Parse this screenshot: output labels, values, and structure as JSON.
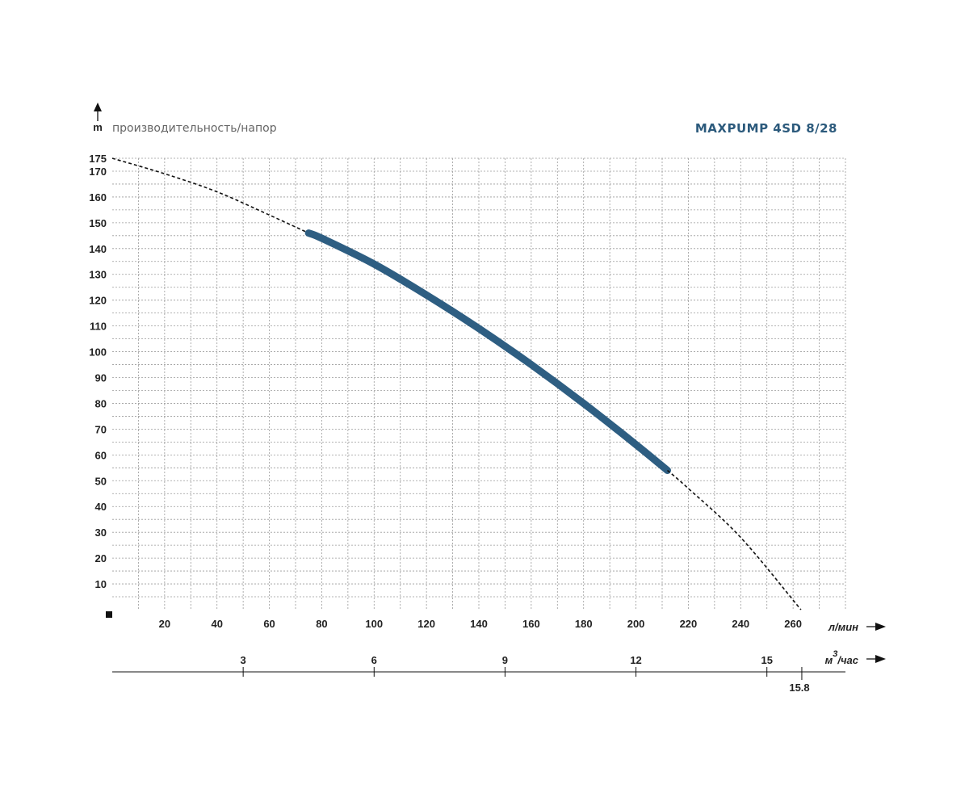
{
  "chart_data": {
    "type": "line",
    "title": "MAXPUMP 4SD 8/28",
    "subtitle": "производительность/напор",
    "ylabel": "m",
    "xlabel": "л/мин",
    "x2label_base": "м",
    "x2label_sup": "3",
    "x2label_rest": "/час",
    "ylim": [
      0,
      175
    ],
    "xlim": [
      0,
      280
    ],
    "y_ticks": [
      10,
      20,
      30,
      40,
      50,
      60,
      70,
      80,
      90,
      100,
      110,
      120,
      130,
      140,
      150,
      160,
      170,
      175
    ],
    "x_ticks": [
      20,
      40,
      60,
      80,
      100,
      120,
      140,
      160,
      180,
      200,
      220,
      240,
      260
    ],
    "x2_ticks": [
      {
        "value": 3,
        "label": "3"
      },
      {
        "value": 6,
        "label": "6"
      },
      {
        "value": 9,
        "label": "9"
      },
      {
        "value": 12,
        "label": "12"
      },
      {
        "value": 15,
        "label": "15"
      }
    ],
    "x2_max_label": "15.8",
    "x2_max_value": 15.8,
    "grid": true,
    "series": [
      {
        "style": "dashed",
        "color": "#111111",
        "x": [
          0,
          20,
          40,
          60,
          75
        ],
        "y": [
          175,
          169,
          162,
          153,
          146
        ]
      },
      {
        "style": "solid-thick",
        "color": "#2e5e82",
        "x": [
          75,
          80,
          100,
          120,
          140,
          160,
          180,
          200,
          212
        ],
        "y": [
          146,
          144,
          134,
          122,
          109,
          95,
          80,
          64,
          54
        ]
      },
      {
        "style": "dashed",
        "color": "#111111",
        "x": [
          212,
          220,
          240,
          263
        ],
        "y": [
          54,
          47,
          28,
          0
        ]
      }
    ]
  }
}
